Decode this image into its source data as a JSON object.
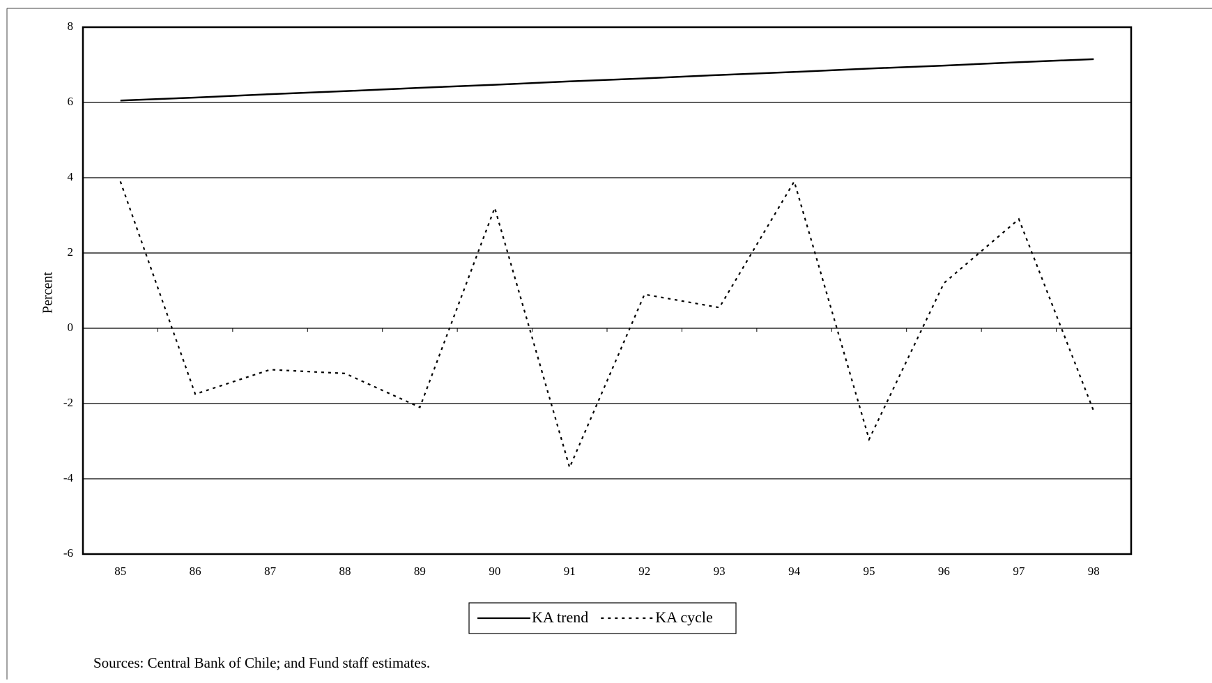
{
  "chart_data": {
    "type": "line",
    "categories": [
      "85",
      "86",
      "87",
      "88",
      "89",
      "90",
      "91",
      "92",
      "93",
      "94",
      "95",
      "96",
      "97",
      "98"
    ],
    "series": [
      {
        "name": "KA trend",
        "color": "#000000",
        "dash": "solid",
        "values": [
          6.05,
          6.13,
          6.22,
          6.3,
          6.39,
          6.47,
          6.56,
          6.64,
          6.73,
          6.81,
          6.9,
          6.98,
          7.07,
          7.15
        ]
      },
      {
        "name": "KA cycle",
        "color": "#000000",
        "dash": "dotted",
        "values": [
          3.9,
          -1.75,
          -1.1,
          -1.2,
          -2.1,
          3.2,
          -3.7,
          0.9,
          0.55,
          3.9,
          -2.95,
          1.2,
          2.9,
          -2.2
        ]
      }
    ],
    "ylabel": "Percent",
    "ylim": [
      -6,
      8
    ],
    "yticks": [
      -6,
      -4,
      -2,
      0,
      2,
      4,
      6,
      8
    ],
    "grid": true,
    "legend": "bottom",
    "note": "Sources:  Central Bank of Chile; and Fund staff estimates."
  }
}
